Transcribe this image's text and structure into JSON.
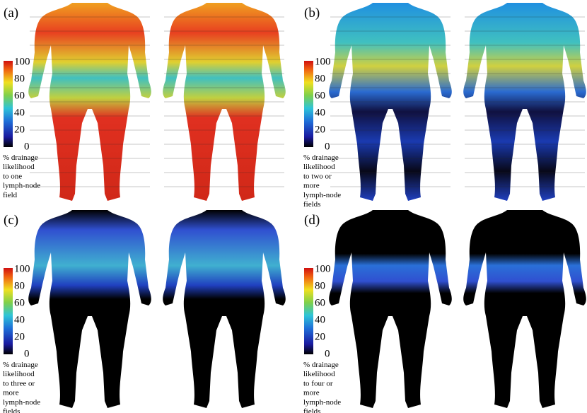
{
  "panels": [
    {
      "label": "(a)",
      "colorbar_ticks": [
        100,
        80,
        60,
        40,
        20,
        0
      ],
      "caption": [
        "% drainage",
        "likelihood",
        "to one",
        "lymph-node",
        "field"
      ]
    },
    {
      "label": "(b)",
      "colorbar_ticks": [
        100,
        80,
        60,
        40,
        20,
        0
      ],
      "caption": [
        "% drainage",
        "likelihood",
        "to two or",
        "more",
        "lymph-node",
        "fields"
      ]
    },
    {
      "label": "(c)",
      "colorbar_ticks": [
        100,
        80,
        60,
        40,
        20,
        0
      ],
      "caption": [
        "% drainage",
        "likelihood",
        "to three or",
        "more",
        "lymph-node",
        "fields"
      ]
    },
    {
      "label": "(d)",
      "colorbar_ticks": [
        100,
        80,
        60,
        40,
        20,
        0
      ],
      "caption": [
        "% drainage",
        "likelihood",
        "to four or",
        "more",
        "lymph-node",
        "fields"
      ]
    }
  ]
}
